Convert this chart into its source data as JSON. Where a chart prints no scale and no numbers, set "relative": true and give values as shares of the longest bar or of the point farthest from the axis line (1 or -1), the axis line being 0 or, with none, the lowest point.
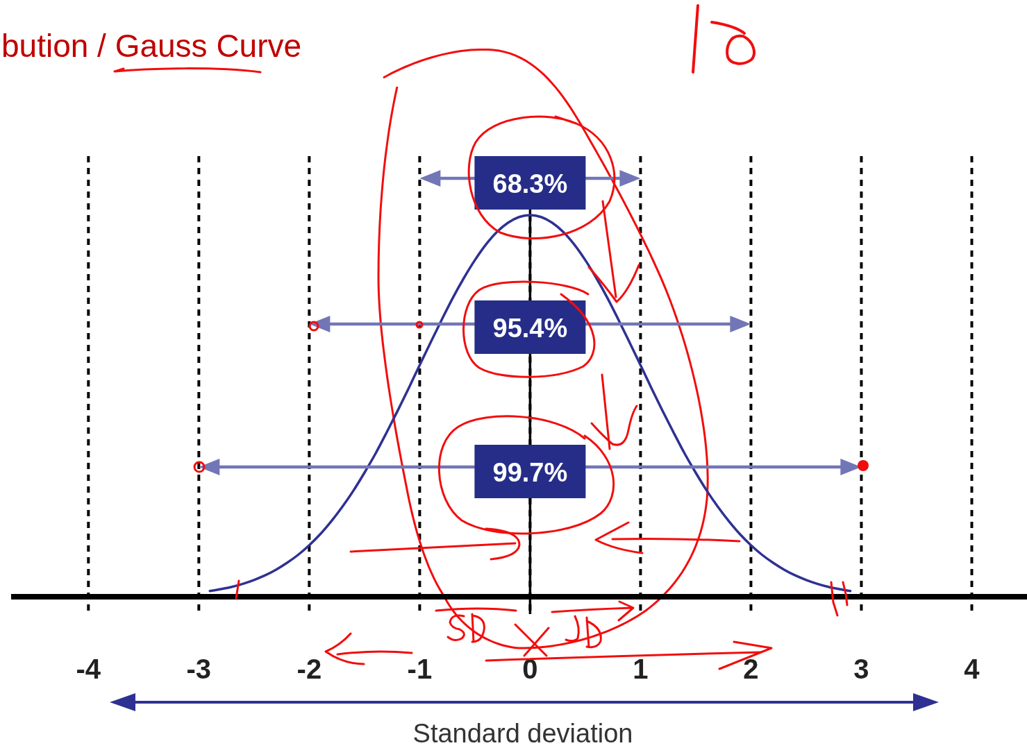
{
  "chart_data": {
    "type": "line",
    "title": "bution / Gauss Curve",
    "xlabel": "Standard deviation",
    "relative": true,
    "color": "#2e3192",
    "x": [
      -2.9,
      -2.8,
      -2.7,
      -2.6,
      -2.5,
      -2.4,
      -2.3,
      -2.2,
      -2.1,
      -2.0,
      -1.9,
      -1.8,
      -1.7,
      -1.6,
      -1.5,
      -1.4,
      -1.3,
      -1.2,
      -1.1,
      -1.0,
      -0.9,
      -0.8,
      -0.7,
      -0.6,
      -0.5,
      -0.4,
      -0.3,
      -0.2,
      -0.1,
      0,
      0.1,
      0.2,
      0.3,
      0.4,
      0.5,
      0.6,
      0.7,
      0.8,
      0.9,
      1.0,
      1.1,
      1.2,
      1.3,
      1.4,
      1.5,
      1.6,
      1.7,
      1.8,
      1.9,
      2.0,
      2.1,
      2.2,
      2.3,
      2.4,
      2.5,
      2.6,
      2.7,
      2.8,
      2.9
    ],
    "values": [
      0.015,
      0.02,
      0.026,
      0.034,
      0.044,
      0.056,
      0.071,
      0.089,
      0.11,
      0.135,
      0.164,
      0.198,
      0.236,
      0.278,
      0.325,
      0.375,
      0.43,
      0.487,
      0.546,
      0.607,
      0.667,
      0.726,
      0.783,
      0.835,
      0.882,
      0.923,
      0.956,
      0.98,
      0.995,
      1.0,
      0.995,
      0.98,
      0.956,
      0.923,
      0.882,
      0.835,
      0.783,
      0.726,
      0.667,
      0.607,
      0.546,
      0.487,
      0.43,
      0.375,
      0.325,
      0.278,
      0.236,
      0.198,
      0.164,
      0.135,
      0.11,
      0.089,
      0.071,
      0.056,
      0.044,
      0.034,
      0.026,
      0.02,
      0.015
    ],
    "xlim": [
      -4.7,
      4.5
    ],
    "xticks": [
      -4,
      -3,
      -2,
      -1,
      0,
      1,
      2,
      3,
      4
    ],
    "grid": "x",
    "ref_lines": [
      {
        "axis": "x",
        "value": 0,
        "color": "#000000",
        "line_style": "solid"
      }
    ],
    "annotations": [
      "68.3%",
      "95.4%",
      "99.7%"
    ]
  }
}
